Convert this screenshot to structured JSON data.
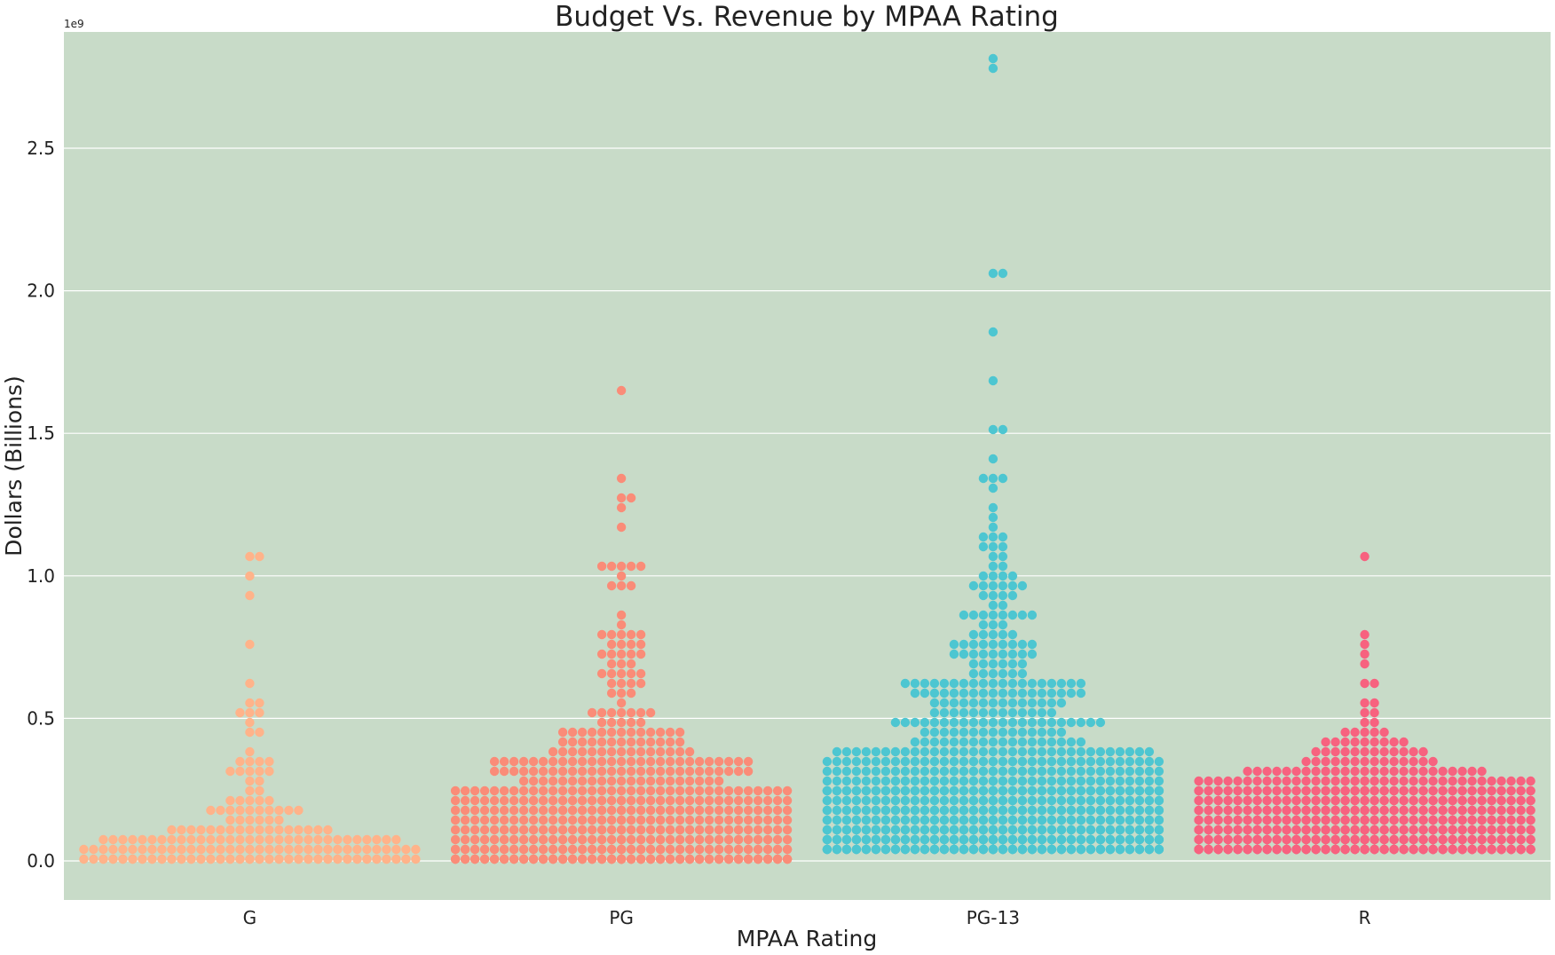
{
  "colors": {
    "plot_background": "#c8dbc8",
    "grid": "#ffffff",
    "G": "#ffb38a",
    "PG": "#fa8c78",
    "PG-13": "#4dc6d1",
    "R": "#f7627f"
  },
  "chart_data": {
    "type": "swarm",
    "title": "Budget Vs. Revenue by MPAA Rating",
    "xlabel": "MPAA Rating",
    "ylabel": "Dollars (Billions)",
    "y_offset_label": "1e9",
    "ylim": [
      -0.14,
      2.95
    ],
    "yticks": [
      0.0,
      0.5,
      1.0,
      1.5,
      2.0,
      2.5
    ],
    "ytick_labels": [
      "0.0",
      "0.5",
      "1.0",
      "1.5",
      "2.0",
      "2.5"
    ],
    "grid": "y",
    "categories": [
      "G",
      "PG",
      "PG-13",
      "R"
    ],
    "series": [
      {
        "category": "G",
        "notable_values": [
          1.075,
          1.07,
          0.99,
          0.945,
          0.745,
          0.625,
          0.565,
          0.56,
          0.525,
          0.51,
          0.505,
          0.5,
          0.465,
          0.45
        ],
        "bulk_bands": [
          [
            0.4,
            0.2,
            18
          ],
          [
            0.2,
            0.1,
            30
          ],
          [
            0.1,
            0.05,
            50
          ],
          [
            0.05,
            0.0,
            110
          ]
        ]
      },
      {
        "category": "PG",
        "notable_values": [
          1.66,
          1.335,
          1.275,
          1.26,
          1.245,
          1.16,
          1.05,
          1.035,
          1.03,
          1.025,
          1.02
        ],
        "bulk_bands": [
          [
            1.0,
            0.75,
            14
          ],
          [
            0.75,
            0.5,
            30
          ],
          [
            0.5,
            0.35,
            60
          ],
          [
            0.35,
            0.2,
            150
          ],
          [
            0.2,
            0.0,
            420
          ]
        ]
      },
      {
        "category": "PG-13",
        "notable_values": [
          2.8,
          2.795,
          2.07,
          2.05,
          1.85,
          1.675,
          1.52,
          1.515,
          1.405,
          1.35,
          1.345,
          1.335,
          1.31,
          1.24,
          1.22,
          1.155,
          1.145,
          1.13,
          1.125,
          1.115,
          1.11,
          1.1,
          1.075,
          1.07,
          1.05,
          1.025,
          1.005
        ],
        "bulk_bands": [
          [
            1.0,
            0.75,
            40
          ],
          [
            0.75,
            0.5,
            90
          ],
          [
            0.5,
            0.35,
            110
          ],
          [
            0.35,
            0.25,
            200
          ],
          [
            0.25,
            0.04,
            720
          ]
        ]
      },
      {
        "category": "R",
        "notable_values": [
          1.08,
          0.785,
          0.745,
          0.74,
          0.7,
          0.62,
          0.61,
          0.555,
          0.55,
          0.525,
          0.515,
          0.485,
          0.47
        ],
        "bulk_bands": [
          [
            0.45,
            0.3,
            60
          ],
          [
            0.3,
            0.24,
            90
          ],
          [
            0.24,
            0.03,
            820
          ]
        ]
      }
    ]
  }
}
